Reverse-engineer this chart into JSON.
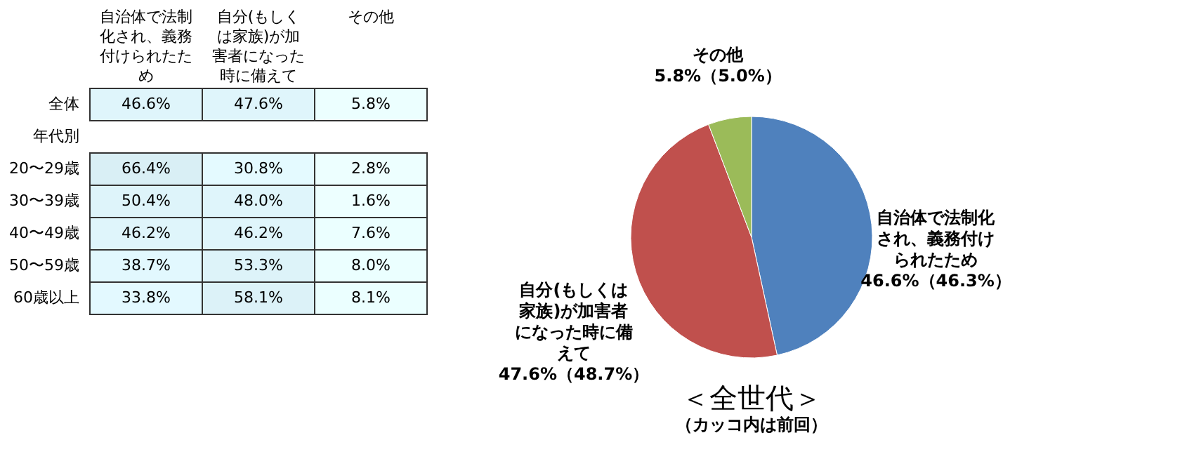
{
  "chart_data": [
    {
      "type": "heatmap",
      "categories": [
        "自治体で法制化され、義務付けられたため",
        "自分(もしくは家族)が加害者になった時に備えて",
        "その他"
      ],
      "y_categories": [
        "全体",
        "年代別",
        "20〜29歳",
        "30〜39歳",
        "40〜49歳",
        "50〜59歳",
        "60歳以上"
      ],
      "cells": [
        [
          46.6,
          47.6,
          5.8
        ],
        [
          null,
          null,
          null
        ],
        [
          66.4,
          30.8,
          2.8
        ],
        [
          50.4,
          48.0,
          1.6
        ],
        [
          46.2,
          46.2,
          7.6
        ],
        [
          38.7,
          53.3,
          8.0
        ],
        [
          33.8,
          58.1,
          8.1
        ]
      ],
      "cell_labels": [
        [
          "46.6%",
          "47.6%",
          "5.8%"
        ],
        [
          null,
          null,
          null
        ],
        [
          "66.4%",
          "30.8%",
          "2.8%"
        ],
        [
          "50.4%",
          "48.0%",
          "1.6%"
        ],
        [
          "46.2%",
          "46.2%",
          "7.6%"
        ],
        [
          "38.7%",
          "53.3%",
          "8.0%"
        ],
        [
          "33.8%",
          "58.1%",
          "8.1%"
        ]
      ]
    },
    {
      "type": "pie",
      "title": "＜全世代＞",
      "subtitle": "（カッコ内は前回）",
      "categories": [
        "自治体で法制化され、義務付けられたため",
        "自分(もしくは家族)が加害者になった時に備えて",
        "その他"
      ],
      "values": [
        46.6,
        47.6,
        5.8
      ],
      "colors": [
        "#4f81bd",
        "#c0504d",
        "#9bbb59"
      ],
      "value_labels": [
        "46.6%（46.3%）",
        "47.6%（48.7%）",
        "5.8%（5.0%）"
      ]
    }
  ]
}
